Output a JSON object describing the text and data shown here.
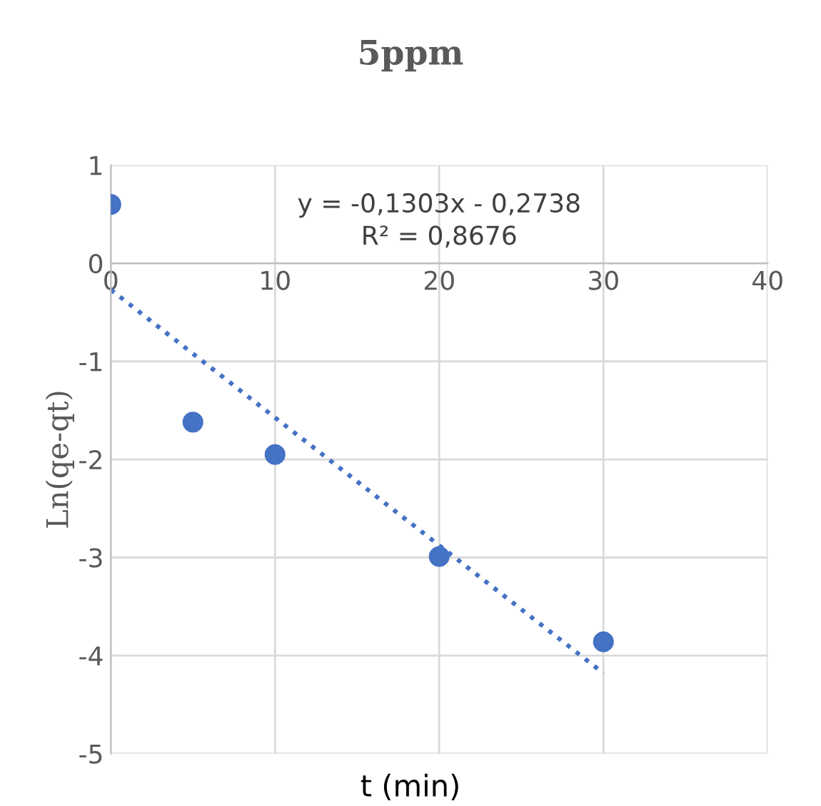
{
  "chart_data": {
    "type": "scatter",
    "title": "5ppm",
    "xlabel": "t (min)",
    "ylabel": "Ln(qe-qt)",
    "series": [
      {
        "color": "#4472c4",
        "x": [
          0,
          5,
          10,
          20,
          30
        ],
        "values": [
          0.6,
          -1.62,
          -1.95,
          -2.99,
          -3.86
        ],
        "marker": "circle"
      },
      {
        "type": "line",
        "color": "#4472c4",
        "x": [
          0,
          30
        ],
        "values": [
          -0.27,
          -4.18
        ],
        "line_style": "dotted",
        "marker": "none"
      }
    ],
    "annotations": [
      "y = -0,1303x - 0,2738",
      "R² = 0,8676"
    ],
    "xlim": [
      0,
      40
    ],
    "ylim": [
      -5,
      1
    ],
    "xticks": [
      0,
      10,
      20,
      30,
      40
    ],
    "yticks": [
      -5,
      -4,
      -3,
      -2,
      -1,
      0,
      1
    ],
    "grid": true,
    "legend": false
  }
}
